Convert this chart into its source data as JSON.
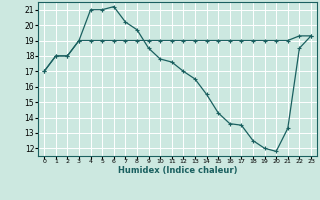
{
  "xlabel": "Humidex (Indice chaleur)",
  "background_color": "#cce8e0",
  "grid_color": "#ffffff",
  "line_color": "#1a6060",
  "xlim": [
    -0.5,
    23.5
  ],
  "ylim": [
    11.5,
    21.5
  ],
  "xticks": [
    0,
    1,
    2,
    3,
    4,
    5,
    6,
    7,
    8,
    9,
    10,
    11,
    12,
    13,
    14,
    15,
    16,
    17,
    18,
    19,
    20,
    21,
    22,
    23
  ],
  "yticks": [
    12,
    13,
    14,
    15,
    16,
    17,
    18,
    19,
    20,
    21
  ],
  "series1_x": [
    0,
    1,
    2,
    3,
    4,
    5,
    6,
    7,
    8,
    9,
    10,
    11,
    12,
    13,
    14,
    15,
    16,
    17,
    18,
    19,
    20,
    21,
    22,
    23
  ],
  "series1_y": [
    17.0,
    18.0,
    18.0,
    19.0,
    21.0,
    21.0,
    21.2,
    20.2,
    19.7,
    18.5,
    17.8,
    17.6,
    17.0,
    16.5,
    15.5,
    14.3,
    13.6,
    13.5,
    12.5,
    12.0,
    11.8,
    13.3,
    18.5,
    19.3
  ],
  "series2_x": [
    0,
    1,
    2,
    3,
    4,
    5,
    6,
    7,
    8,
    9,
    10,
    11,
    12,
    13,
    14,
    15,
    16,
    17,
    18,
    19,
    20,
    21,
    22,
    23
  ],
  "series2_y": [
    17.0,
    18.0,
    18.0,
    19.0,
    19.0,
    19.0,
    19.0,
    19.0,
    19.0,
    19.0,
    19.0,
    19.0,
    19.0,
    19.0,
    19.0,
    19.0,
    19.0,
    19.0,
    19.0,
    19.0,
    19.0,
    19.0,
    19.3,
    19.3
  ]
}
